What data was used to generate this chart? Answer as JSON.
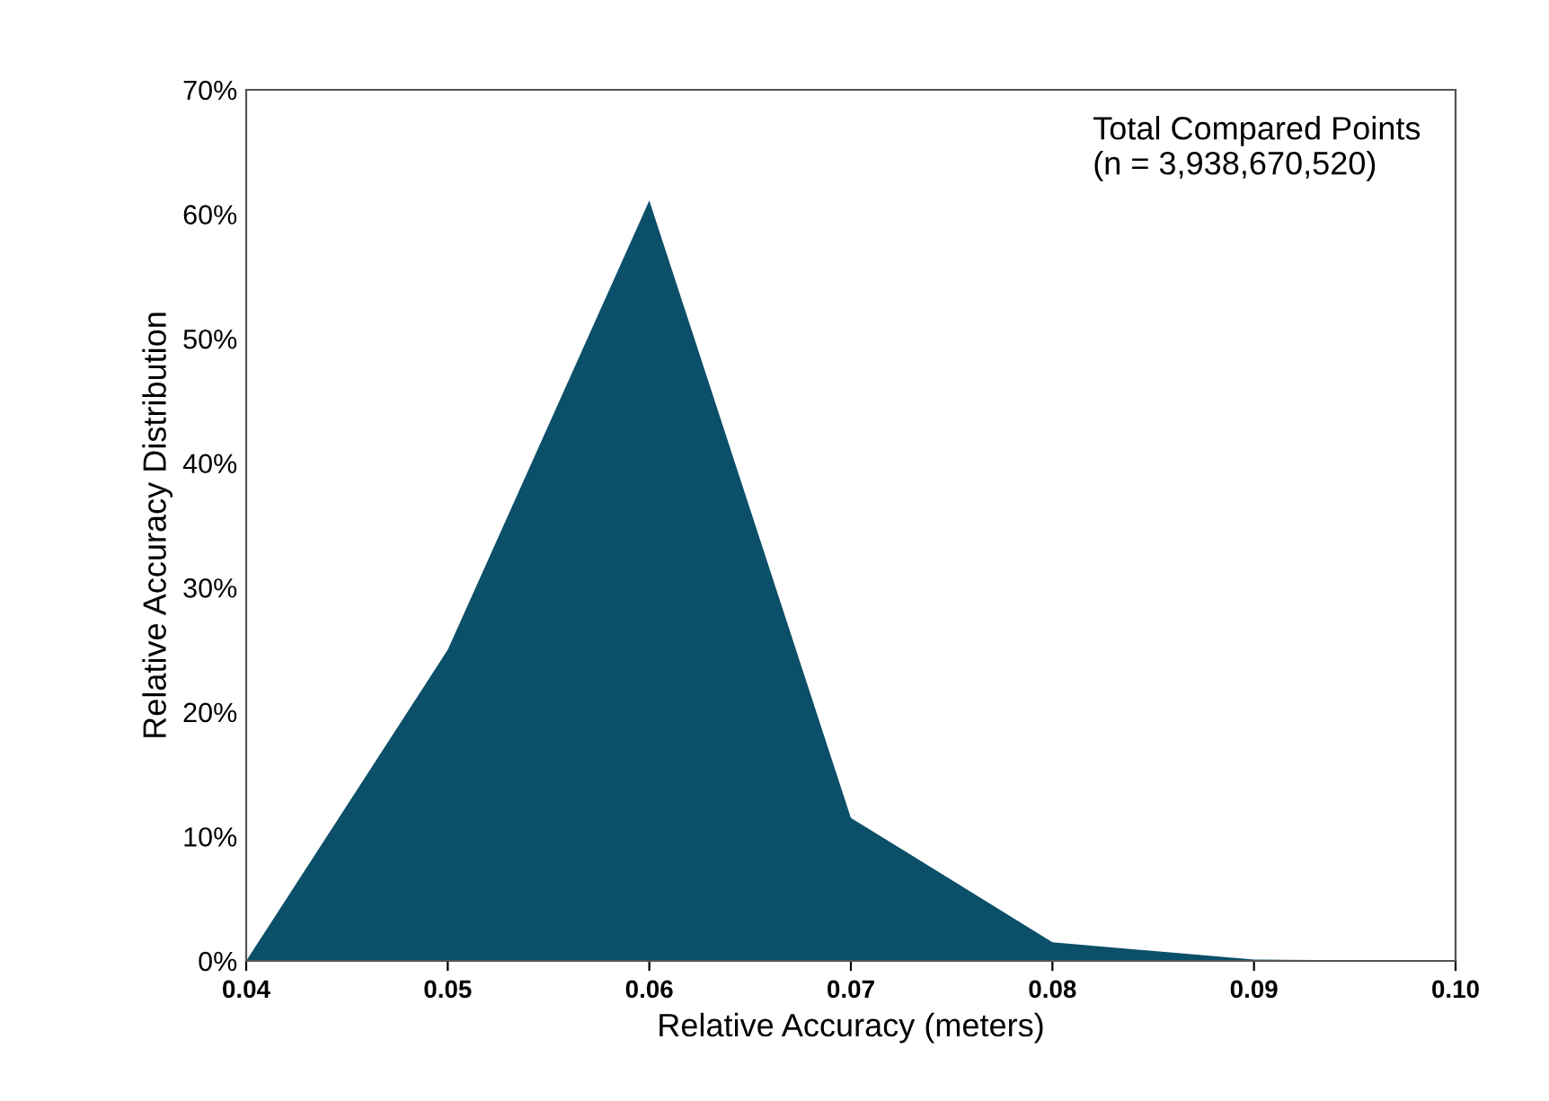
{
  "chart_data": {
    "type": "area",
    "xlabel": "Relative Accuracy (meters)",
    "ylabel": "Relative Accuracy Distribution",
    "annotations": [
      "Total Compared Points\n(n = 3,938,670,520)"
    ],
    "x": [
      0.04,
      0.05,
      0.06,
      0.07,
      0.08,
      0.09,
      0.1
    ],
    "series": [
      {
        "color": "#0b4f69",
        "values": [
          0,
          25.0,
          61.1,
          11.5,
          1.5,
          0.1,
          0
        ]
      }
    ],
    "xlim": [
      0.04,
      0.1
    ],
    "xticks": [
      {
        "value": 0.04,
        "label": "0.04"
      },
      {
        "value": 0.05,
        "label": "0.05"
      },
      {
        "value": 0.06,
        "label": "0.06"
      },
      {
        "value": 0.07,
        "label": "0.07"
      },
      {
        "value": 0.08,
        "label": "0.08"
      },
      {
        "value": 0.09,
        "label": "0.09"
      },
      {
        "value": 0.1,
        "label": "0.10"
      }
    ],
    "ylim": [
      0,
      70
    ],
    "yticks": [
      {
        "value": 0,
        "label": "0%"
      },
      {
        "value": 10,
        "label": "10%"
      },
      {
        "value": 20,
        "label": "20%"
      },
      {
        "value": 30,
        "label": "30%"
      },
      {
        "value": 40,
        "label": "40%"
      },
      {
        "value": 50,
        "label": "50%"
      },
      {
        "value": 60,
        "label": "60%"
      },
      {
        "value": 70,
        "label": "70%"
      }
    ],
    "grid": false,
    "legend": false
  }
}
